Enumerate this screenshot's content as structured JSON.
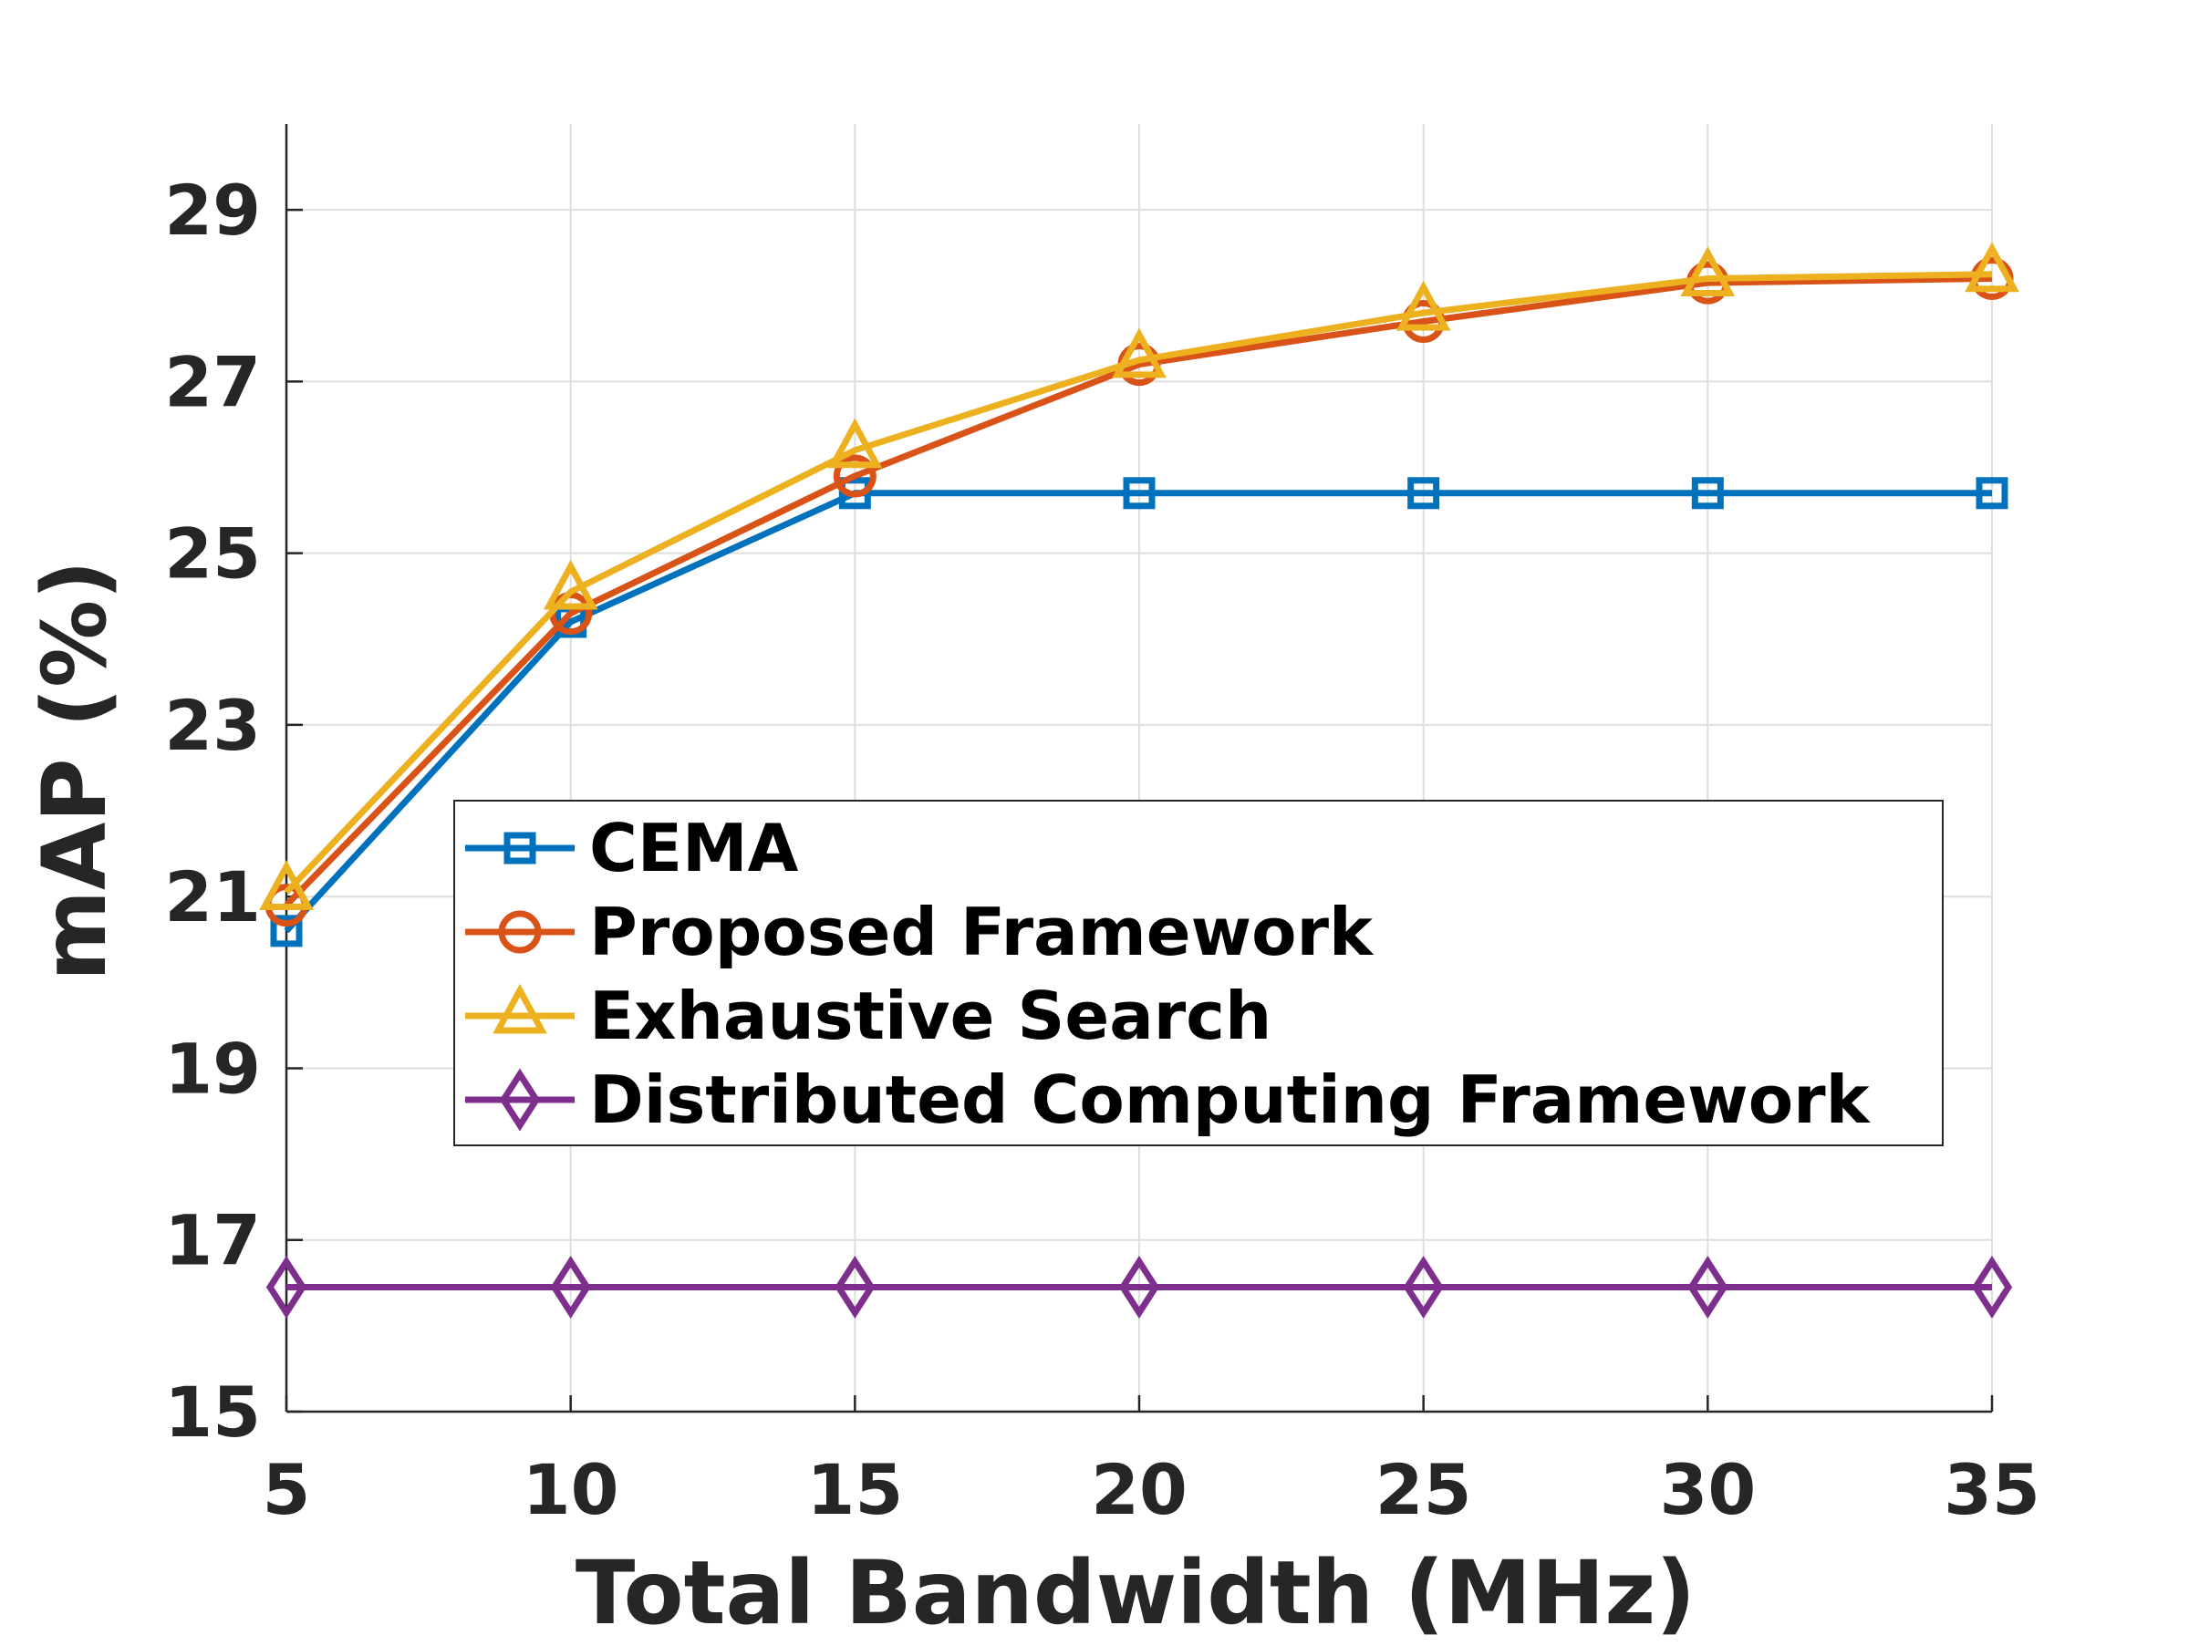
{
  "chart_data": {
    "type": "line",
    "xlabel": "Total Bandwidth (MHz)",
    "ylabel": "mAP (%)",
    "x": [
      5,
      10,
      15,
      20,
      25,
      30,
      35
    ],
    "xlim": [
      5,
      35
    ],
    "ylim": [
      15,
      30
    ],
    "xticks": [
      "5",
      "10",
      "15",
      "20",
      "25",
      "30",
      "35"
    ],
    "yticks": [
      "15",
      "17",
      "19",
      "21",
      "23",
      "25",
      "27",
      "29"
    ],
    "grid": true,
    "legend_location": "center",
    "series": [
      {
        "name": "CEMA",
        "marker": "square",
        "color": "#0072BD",
        "values": [
          20.6,
          24.2,
          25.7,
          25.7,
          25.7,
          25.7,
          25.7
        ]
      },
      {
        "name": "Proposed Framework",
        "marker": "circle",
        "color": "#D95319",
        "values": [
          20.9,
          24.3,
          25.9,
          27.2,
          27.7,
          28.15,
          28.2
        ]
      },
      {
        "name": "Exhaustive Search",
        "marker": "triangle",
        "color": "#EDB120",
        "values": [
          21.05,
          24.55,
          26.2,
          27.25,
          27.8,
          28.2,
          28.25
        ]
      },
      {
        "name": "Distributed Computing Framework",
        "marker": "diamond",
        "color": "#7E2F8E",
        "values": [
          16.45,
          16.45,
          16.45,
          16.45,
          16.45,
          16.45,
          16.45
        ]
      }
    ]
  }
}
